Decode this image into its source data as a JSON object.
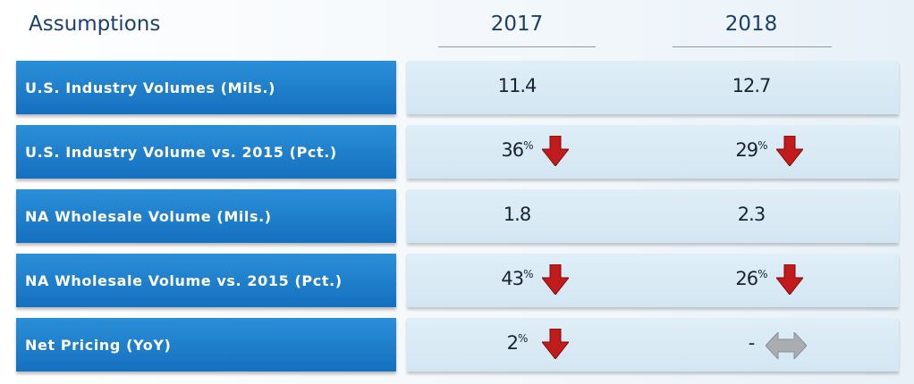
{
  "header": {
    "title": "Assumptions",
    "columns": [
      "2017",
      "2018"
    ]
  },
  "table": {
    "rows": [
      {
        "label": "U.S. Industry Volumes (Mils.)",
        "cells": [
          {
            "value": "11.4"
          },
          {
            "value": "12.7"
          }
        ]
      },
      {
        "label": "U.S. Industry Volume vs. 2015 (Pct.)",
        "cells": [
          {
            "value": "36",
            "sup": "%",
            "trend": "down"
          },
          {
            "value": "29",
            "sup": "%",
            "trend": "down"
          }
        ]
      },
      {
        "label": "NA Wholesale Volume (Mils.)",
        "cells": [
          {
            "value": "1.8"
          },
          {
            "value": "2.3"
          }
        ]
      },
      {
        "label": "NA Wholesale Volume vs. 2015 (Pct.)",
        "cells": [
          {
            "value": "43",
            "sup": "%",
            "trend": "down"
          },
          {
            "value": "26",
            "sup": "%",
            "trend": "down"
          }
        ]
      },
      {
        "label": "Net Pricing (YoY)",
        "cells": [
          {
            "value": "2",
            "sup": "%",
            "trend": "down"
          },
          {
            "value": "-",
            "trend": "flat"
          }
        ]
      }
    ]
  }
}
